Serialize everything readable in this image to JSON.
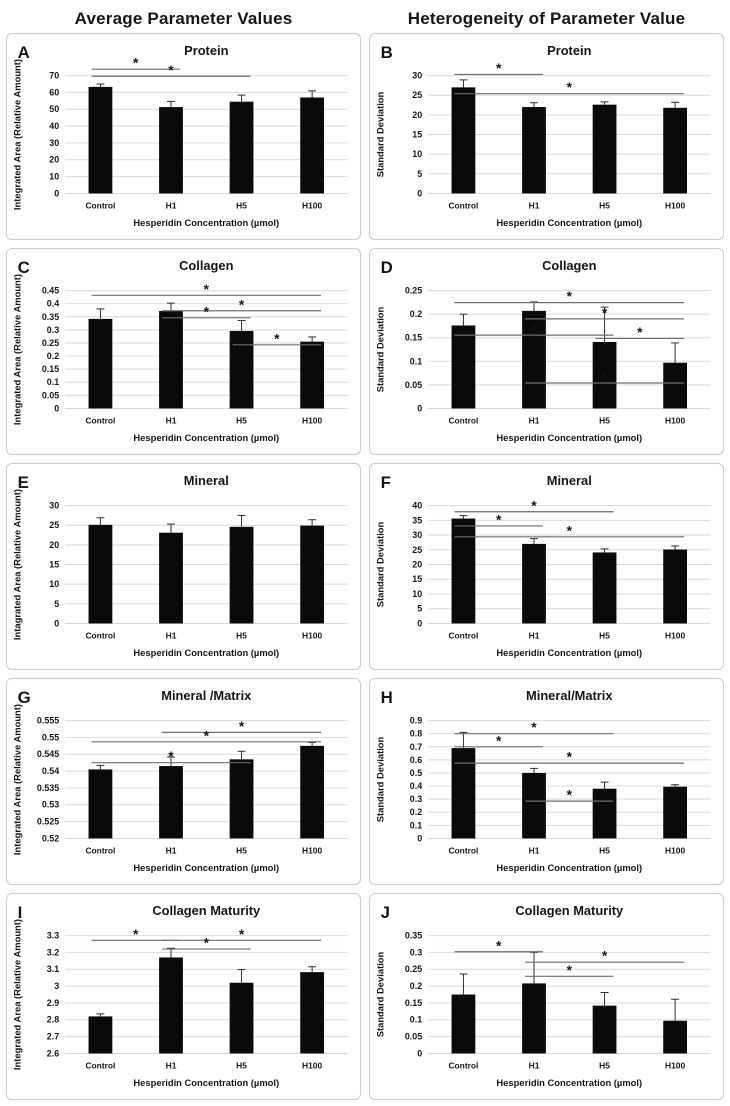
{
  "page": {
    "column_headers": [
      "Average Parameter Values",
      "Heterogeneity of Parameter Value"
    ]
  },
  "colors": {
    "bar": "#0a0a0a",
    "gridline": "#d9d9d9",
    "sig_line": "#6e6e6e",
    "error_bar": "#2e2e2e",
    "text": "#161616",
    "panel_border": "#cccccc"
  },
  "sig_marker": "*",
  "chart_data": [
    {
      "panel": "A",
      "type": "bar",
      "title": "Protein",
      "ylabel": "Integrated Area (Relative Amount)",
      "xlabel": "Hesperidin Concentration (µmol)",
      "categories": [
        "Control",
        "H1",
        "H5",
        "H100"
      ],
      "values": [
        63.3,
        51.3,
        54.5,
        57.0
      ],
      "errors": [
        1.7,
        3.4,
        3.9,
        3.9
      ],
      "ylim": [
        0,
        70
      ],
      "ystep": 10,
      "grid": true,
      "legend": "none",
      "sig_lines": [
        {
          "y": 73.8,
          "from": 0,
          "to": 1
        },
        {
          "y": 69.6,
          "from": 0,
          "to": 2
        }
      ]
    },
    {
      "panel": "B",
      "type": "bar",
      "title": "Protein",
      "ylabel": "Standard Deviation",
      "xlabel": "Hesperidin Concentration (µmol)",
      "categories": [
        "Control",
        "H1",
        "H5",
        "H100"
      ],
      "values": [
        27.0,
        22.0,
        22.6,
        21.8
      ],
      "errors": [
        1.9,
        1.1,
        0.7,
        1.4
      ],
      "ylim": [
        0,
        30
      ],
      "ystep": 5,
      "grid": true,
      "legend": "none",
      "sig_lines": [
        {
          "y": 30.3,
          "from": 0,
          "to": 1
        },
        {
          "y": 25.4,
          "from": 0,
          "to": 3
        }
      ]
    },
    {
      "panel": "C",
      "type": "bar",
      "title": "Collagen",
      "ylabel": "Integrated Area (Relative Amount)",
      "xlabel": "Hesperidin Concentration (µmol)",
      "categories": [
        "Control",
        "H1",
        "H5",
        "H100"
      ],
      "values": [
        0.342,
        0.372,
        0.296,
        0.255
      ],
      "errors": [
        0.038,
        0.03,
        0.04,
        0.018
      ],
      "ylim": [
        0,
        0.45
      ],
      "ystep": 0.05,
      "grid": true,
      "legend": "none",
      "sig_lines": [
        {
          "y": 0.432,
          "from": 0,
          "to": 3
        },
        {
          "y": 0.373,
          "from": 1,
          "to": 3
        },
        {
          "y": 0.346,
          "from": 1,
          "to": 2
        },
        {
          "y": 0.243,
          "from": 2,
          "to": 3
        }
      ]
    },
    {
      "panel": "D",
      "type": "bar",
      "title": "Collagen",
      "ylabel": "Standard Deviation",
      "xlabel": "Hesperidin Concentration (µmol)",
      "categories": [
        "Control",
        "H1",
        "H5",
        "H100"
      ],
      "values": [
        0.176,
        0.207,
        0.141,
        0.097
      ],
      "errors": [
        0.024,
        0.019,
        0.074,
        0.042
      ],
      "ylim": [
        0,
        0.25
      ],
      "ystep": 0.05,
      "grid": true,
      "legend": "none",
      "sig_lines": [
        {
          "y": 0.2245,
          "from": 0,
          "to": 3
        },
        {
          "y": 0.19,
          "from": 1,
          "to": 3
        },
        {
          "y": 0.1555,
          "from": 0,
          "to": 2
        },
        {
          "y": 0.1485,
          "from": 2,
          "to": 3
        },
        {
          "y": 0.054,
          "from": 1,
          "to": 3
        }
      ]
    },
    {
      "panel": "E",
      "type": "bar",
      "title": "Mineral",
      "ylabel": "Intagrated Area (Relative Amount)",
      "xlabel": "Hesperidin Concentration (µmol)",
      "categories": [
        "Control",
        "H1",
        "H5",
        "H100"
      ],
      "values": [
        25.1,
        23.1,
        24.6,
        24.9
      ],
      "errors": [
        1.8,
        2.2,
        2.9,
        1.5
      ],
      "ylim": [
        0,
        30
      ],
      "ystep": 5,
      "grid": true,
      "legend": "none",
      "sig_lines": []
    },
    {
      "panel": "F",
      "type": "bar",
      "title": "Mineral",
      "ylabel": "Standard Deviation",
      "xlabel": "Hesperidin Concentration (µmol)",
      "categories": [
        "Control",
        "H1",
        "H5",
        "H100"
      ],
      "values": [
        35.6,
        27.0,
        24.1,
        25.1
      ],
      "errors": [
        1.0,
        1.8,
        1.2,
        1.2
      ],
      "ylim": [
        0,
        40
      ],
      "ystep": 5,
      "grid": true,
      "legend": "none",
      "sig_lines": [
        {
          "y": 37.9,
          "from": 0,
          "to": 2
        },
        {
          "y": 33.1,
          "from": 0,
          "to": 1
        },
        {
          "y": 29.4,
          "from": 0,
          "to": 3
        }
      ]
    },
    {
      "panel": "G",
      "type": "bar",
      "title": "Mineral /Matrix",
      "ylabel": "Integrated Area (Relative Amount)",
      "xlabel": "Hesperidin Concentration (µmol)",
      "categories": [
        "Control",
        "H1",
        "H5",
        "H100"
      ],
      "values": [
        0.5405,
        0.5415,
        0.5435,
        0.5475
      ],
      "errors": [
        0.0012,
        0.0027,
        0.0024,
        0.001
      ],
      "ylim": [
        0.52,
        0.555
      ],
      "ystep": 0.005,
      "grid": true,
      "legend": "none",
      "sig_lines": [
        {
          "y": 0.5515,
          "from": 1,
          "to": 3
        },
        {
          "y": 0.5487,
          "from": 0,
          "to": 3
        },
        {
          "y": 0.5425,
          "from": 0,
          "to": 2
        }
      ]
    },
    {
      "panel": "H",
      "type": "bar",
      "title": "Mineral/Matrix",
      "ylabel": "Standard Deviation",
      "xlabel": "Hesperidin Concentration (µmol)",
      "categories": [
        "Control",
        "H1",
        "H5",
        "H100"
      ],
      "values": [
        0.69,
        0.5,
        0.38,
        0.395
      ],
      "errors": [
        0.12,
        0.035,
        0.05,
        0.015
      ],
      "ylim": [
        0,
        0.9
      ],
      "ystep": 0.1,
      "grid": true,
      "legend": "none",
      "sig_lines": [
        {
          "y": 0.8,
          "from": 0,
          "to": 2
        },
        {
          "y": 0.7,
          "from": 0,
          "to": 1
        },
        {
          "y": 0.575,
          "from": 0,
          "to": 3
        },
        {
          "y": 0.285,
          "from": 1,
          "to": 2
        }
      ]
    },
    {
      "panel": "I",
      "type": "bar",
      "title": "Collagen Maturity",
      "ylabel": "Integrated Area (Relative Amount)",
      "xlabel": "Hesperidin Concentration (µmol)",
      "categories": [
        "Control",
        "H1",
        "H5",
        "H100"
      ],
      "values": [
        2.82,
        3.17,
        3.02,
        3.083
      ],
      "errors": [
        0.015,
        0.055,
        0.078,
        0.032
      ],
      "ylim": [
        2.6,
        3.3
      ],
      "ystep": 0.1,
      "grid": true,
      "legend": "none",
      "sig_lines": [
        {
          "y": 3.272,
          "from": 0,
          "to": 1
        },
        {
          "y": 3.272,
          "from": 1,
          "to": 3
        },
        {
          "y": 3.22,
          "from": 1,
          "to": 2
        }
      ]
    },
    {
      "panel": "J",
      "type": "bar",
      "title": "Collagen Maturity",
      "ylabel": "Standard Deviation",
      "xlabel": "Hesperidin Concentration (µmol)",
      "categories": [
        "Control",
        "H1",
        "H5",
        "H100"
      ],
      "values": [
        0.175,
        0.208,
        0.142,
        0.097
      ],
      "errors": [
        0.061,
        0.092,
        0.039,
        0.064
      ],
      "ylim": [
        0,
        0.35
      ],
      "ystep": 0.05,
      "grid": true,
      "legend": "none",
      "sig_lines": [
        {
          "y": 0.302,
          "from": 0,
          "to": 1
        },
        {
          "y": 0.271,
          "from": 1,
          "to": 3
        },
        {
          "y": 0.229,
          "from": 1,
          "to": 2
        }
      ]
    }
  ]
}
